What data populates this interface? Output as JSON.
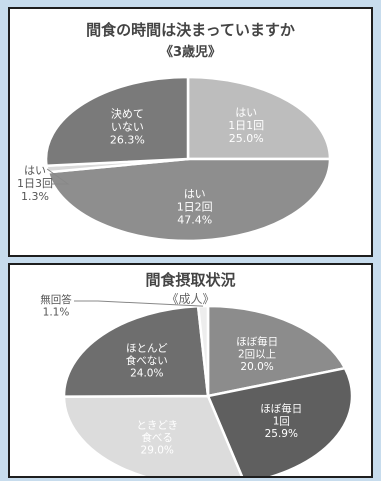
{
  "chart_data": [
    {
      "type": "pie",
      "title": "間食の時間は決まっていますか",
      "subtitle": "《3歳児》",
      "slices": [
        {
          "line1": "はい",
          "line2": "1日1回",
          "pct_label": "25.0%",
          "value": 25.0,
          "color": "#bdbdbd"
        },
        {
          "line1": "はい",
          "line2": "1日2回",
          "pct_label": "47.4%",
          "value": 47.4,
          "color": "#8e8e8e"
        },
        {
          "line1": "はい",
          "line2": "1日3回",
          "pct_label": "1.3%",
          "value": 1.3,
          "color": "#d9d9d9"
        },
        {
          "line1": "決めて",
          "line2": "いない",
          "pct_label": "26.3%",
          "value": 26.3,
          "color": "#7a7a7a"
        }
      ]
    },
    {
      "type": "pie",
      "title": "間食摂取状況",
      "subtitle": "《成人》",
      "slices": [
        {
          "line1": "ほぼ毎日",
          "line2": "2回以上",
          "pct_label": "20.0%",
          "value": 20.0,
          "color": "#8c8c8c"
        },
        {
          "line1": "ほぼ毎日",
          "line2": "1回",
          "pct_label": "25.9%",
          "value": 25.9,
          "color": "#5f5f5f"
        },
        {
          "line1": "ときどき",
          "line2": "食べる",
          "pct_label": "29.0%",
          "value": 29.0,
          "color": "#dcdcdc"
        },
        {
          "line1": "ほとんど",
          "line2": "食べない",
          "pct_label": "24.0%",
          "value": 24.0,
          "color": "#6e6e6e"
        },
        {
          "line1": "無回答",
          "line2": "",
          "pct_label": "1.1%",
          "value": 1.1,
          "color": "#ededed"
        }
      ]
    }
  ]
}
